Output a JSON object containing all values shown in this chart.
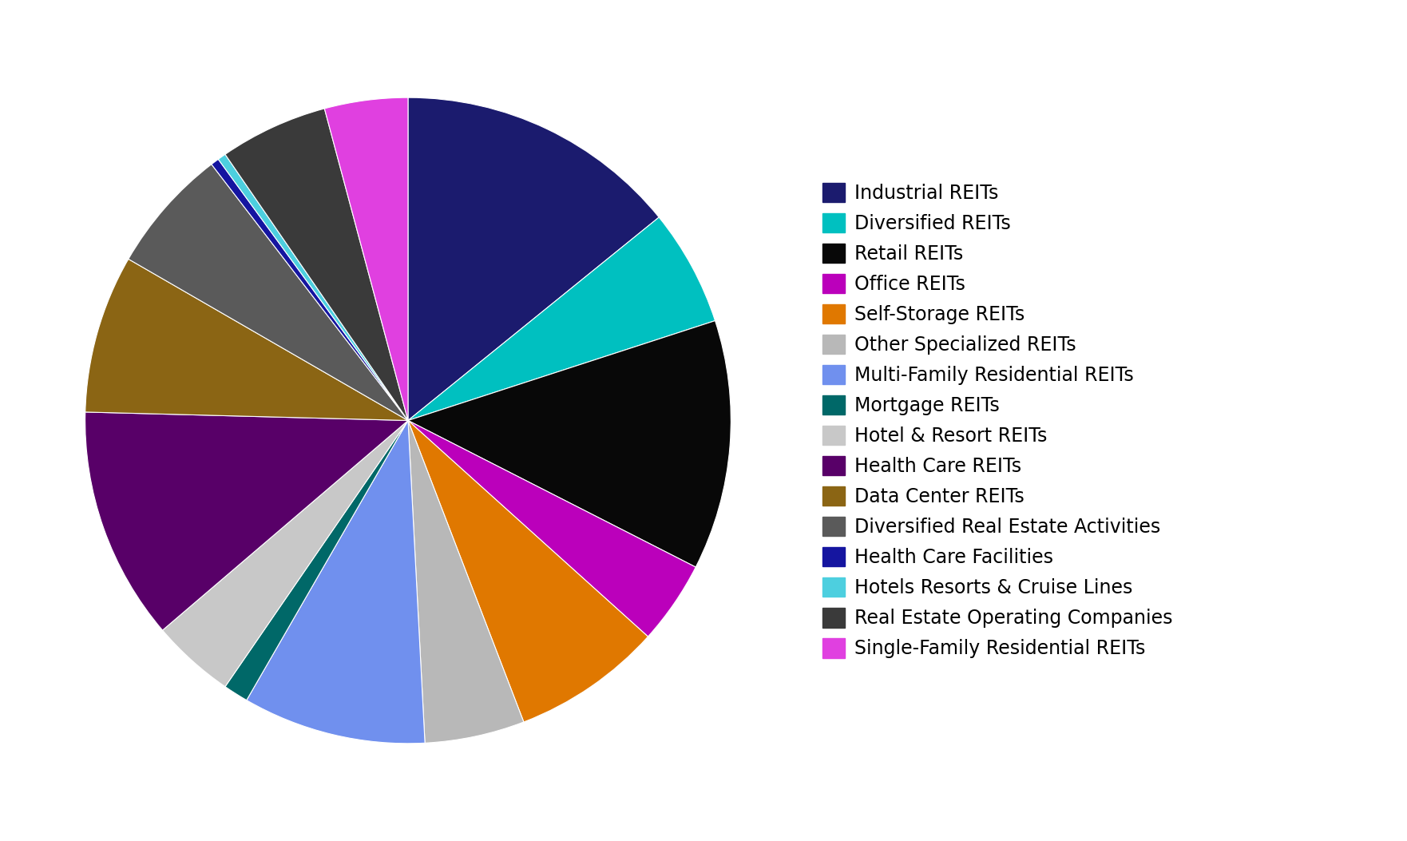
{
  "labels": [
    "Industrial REITs",
    "Diversified REITs",
    "Retail REITs",
    "Office REITs",
    "Self-Storage REITs",
    "Other Specialized REITs",
    "Multi-Family Residential REITs",
    "Mortgage REITs",
    "Hotel & Resort REITs",
    "Health Care REITs",
    "Data Center REITs",
    "Diversified Real Estate Activities",
    "Health Care Facilities",
    "Hotels Resorts & Cruise Lines",
    "Real Estate Operating Companies",
    "Single-Family Residential REITs"
  ],
  "sizes": [
    17.0,
    7.0,
    15.0,
    5.0,
    9.0,
    6.0,
    11.0,
    1.5,
    5.0,
    14.0,
    9.5,
    7.5,
    0.5,
    0.5,
    6.5,
    5.0
  ],
  "colors": [
    "#1B1B6E",
    "#00C0C0",
    "#080808",
    "#BB00BB",
    "#E07800",
    "#B8B8B8",
    "#7090EE",
    "#006868",
    "#C8C8C8",
    "#580068",
    "#8B6514",
    "#5A5A5A",
    "#1515A0",
    "#4DCFDF",
    "#3A3A3A",
    "#E040E0"
  ],
  "background_color": "#ffffff",
  "legend_fontsize": 17,
  "figsize": [
    17.62,
    10.53
  ]
}
